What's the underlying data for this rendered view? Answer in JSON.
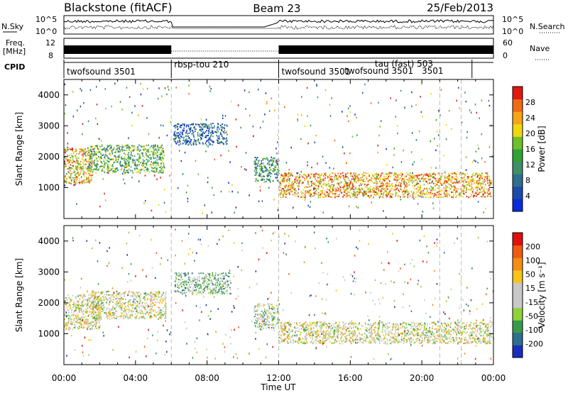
{
  "header": {
    "radar": "Blackstone (fitACF)",
    "beam": "Beam 23",
    "date": "25/Feb/2013"
  },
  "strips": {
    "sky": {
      "left_label": "N.Sky",
      "right_label": "N.Search",
      "left_ticks": [
        "10^5",
        "10^0"
      ],
      "right_ticks": [
        "10^5",
        "10^0"
      ]
    },
    "freq": {
      "left_label": "Freq.",
      "left_unit": "[MHz]",
      "right_label": "Nave",
      "left_ticks": [
        "12",
        "8"
      ],
      "right_ticks": [
        "60",
        "0"
      ]
    },
    "cpid": {
      "label": "CPID",
      "segments": [
        {
          "start_hr": 0.0,
          "end_hr": 6.0,
          "text": "twofsound 3501"
        },
        {
          "start_hr": 6.0,
          "end_hr": 12.0,
          "text": "rbsp-tou 210"
        },
        {
          "start_hr": 12.0,
          "end_hr": 24.0,
          "text": "twofsound 3501"
        }
      ],
      "extra_labels": [
        {
          "at_hr": 19.0,
          "row": 0,
          "text": "tau (fast) 503"
        },
        {
          "at_hr": 17.6,
          "row": 1,
          "text": "twofsound 3501"
        },
        {
          "at_hr": 20.6,
          "row": 1,
          "text": "3501"
        }
      ]
    }
  },
  "chart_data": [
    {
      "type": "heatmap",
      "name": "power",
      "ylabel": "Slant Range [km]",
      "ylim": [
        0,
        4500
      ],
      "yticks": [
        1000,
        2000,
        3000,
        4000
      ],
      "xlim": [
        0,
        24
      ],
      "colorbar": {
        "label": "Power [dB]",
        "ticks": [
          "4",
          "8",
          "12",
          "16",
          "20",
          "24",
          "28"
        ],
        "colors": [
          "#0a2bdc",
          "#1c4aa8",
          "#2e6e8e",
          "#3e8f6a",
          "#2fa336",
          "#6cc02a",
          "#f0d80c",
          "#f7a417",
          "#f06a16",
          "#e0180e"
        ]
      },
      "regions": [
        {
          "hours": [
            0.0,
            1.6
          ],
          "ranges": [
            1150,
            2300
          ],
          "level": 0.7
        },
        {
          "hours": [
            1.3,
            5.6
          ],
          "ranges": [
            1500,
            2400
          ],
          "level": 0.45
        },
        {
          "hours": [
            6.1,
            9.1
          ],
          "ranges": [
            2400,
            3100
          ],
          "level": 0.2
        },
        {
          "hours": [
            10.6,
            12.0
          ],
          "ranges": [
            1200,
            2000
          ],
          "level": 0.35
        },
        {
          "hours": [
            12.0,
            23.9
          ],
          "ranges": [
            700,
            1500
          ],
          "level": 0.75
        }
      ],
      "dashed_lines_hr": [
        6.0,
        12.0,
        21.0,
        22.2
      ]
    },
    {
      "type": "heatmap",
      "name": "velocity",
      "ylabel": "Slant Range [km]",
      "xlabel": "Time UT",
      "ylim": [
        0,
        4500
      ],
      "yticks": [
        1000,
        2000,
        3000,
        4000
      ],
      "xlim": [
        0,
        24
      ],
      "xticks": [
        "00:00",
        "04:00",
        "08:00",
        "12:00",
        "16:00",
        "20:00",
        "00:00"
      ],
      "colorbar": {
        "label": "Velocity [m s⁻¹]",
        "ticks": [
          "200",
          "100",
          "50",
          "15",
          "-15",
          "-50",
          "-100",
          "-200"
        ],
        "colors": [
          "#1a2cc0",
          "#2d6e8c",
          "#3a9a4c",
          "#8ed23a",
          "#c8c8c8",
          "#c8c8c8",
          "#f7c41a",
          "#f58c14",
          "#f05a12",
          "#e0100c"
        ]
      },
      "regions": [
        {
          "hours": [
            0.0,
            2.0
          ],
          "ranges": [
            1150,
            2300
          ],
          "level": 0.5
        },
        {
          "hours": [
            1.5,
            5.7
          ],
          "ranges": [
            1500,
            2400
          ],
          "level": 0.5
        },
        {
          "hours": [
            6.1,
            9.3
          ],
          "ranges": [
            2300,
            3000
          ],
          "level": 0.35
        },
        {
          "hours": [
            10.6,
            12.0
          ],
          "ranges": [
            1200,
            2000
          ],
          "level": 0.4
        },
        {
          "hours": [
            12.0,
            23.9
          ],
          "ranges": [
            700,
            1400
          ],
          "level": 0.5
        }
      ],
      "dashed_lines_hr": [
        6.0,
        12.0,
        21.0,
        22.2
      ]
    }
  ]
}
